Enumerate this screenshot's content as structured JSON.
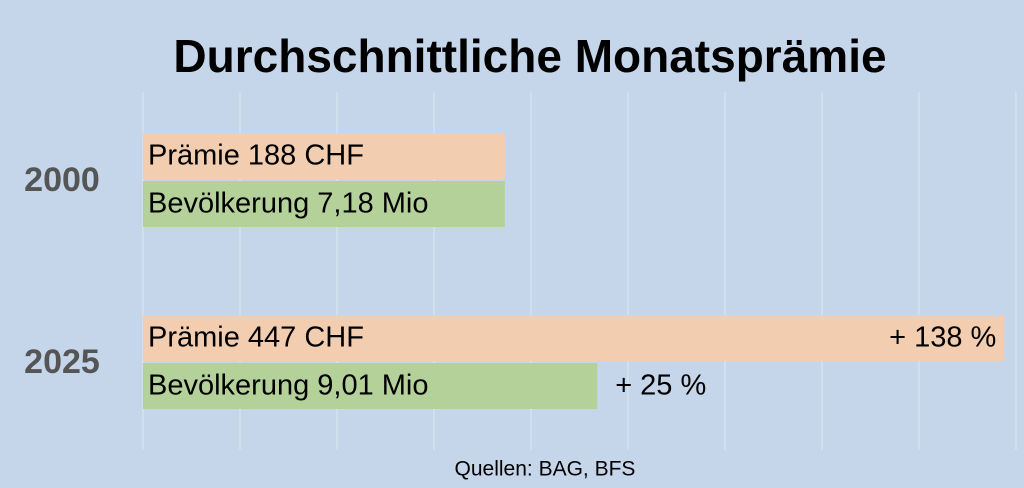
{
  "chart_data": {
    "type": "bar",
    "orientation": "horizontal",
    "title": "Durchschnittliche Monatsprämie",
    "source": "Quellen: BAG, BFS",
    "categories": [
      "2000",
      "2025"
    ],
    "series": [
      {
        "name": "Prämie",
        "color": "#f2cdb0",
        "values": [
          100,
          238
        ],
        "bar_labels": [
          "Prämie 188 CHF",
          "Prämie 447 CHF"
        ],
        "change_labels": [
          null,
          "+ 138 %"
        ]
      },
      {
        "name": "Bevölkerung",
        "color": "#b5d19a",
        "values": [
          100,
          125.5
        ],
        "bar_labels": [
          "Bevölkerung 7,18 Mio",
          "Bevölkerung 9,01 Mio"
        ],
        "change_labels": [
          null,
          "+ 25 %"
        ]
      }
    ],
    "xlim": [
      0,
      241.5
    ],
    "xticks": [
      0,
      26.8,
      53.6,
      80.4,
      107.2,
      134,
      160.8,
      187.6,
      214.4,
      241.2
    ],
    "grid": true
  }
}
